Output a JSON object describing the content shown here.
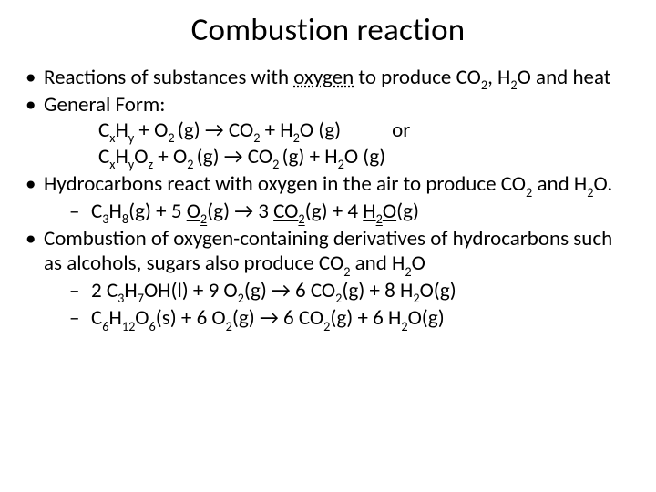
{
  "colors": {
    "text": "#000000",
    "background": "#ffffff"
  },
  "typography": {
    "title_fontsize": 35,
    "body_fontsize": 23,
    "font_family": "Calibri"
  },
  "title": "Combustion reaction",
  "bullets": {
    "b1_pre": "Reactions of substances with ",
    "b1_oxygen": "oxygen",
    "b1_mid": " to produce CO",
    "b1_co2_sub": "2",
    "b1_comma": ", H",
    "b1_h2o_sub": "2",
    "b1_tail": "O and heat",
    "b2": "General Form:",
    "gf1_c": "C",
    "gf1_x": "x",
    "gf1_h": "H",
    "gf1_y": "y",
    "gf1_p1": "  + O",
    "gf1_o2": "2 ",
    "gf1_g1": "(g)   → CO",
    "gf1_co2": "2",
    "gf1_p2": " + H",
    "gf1_h2o": "2",
    "gf1_tail": "O (g)",
    "gf1_or": "or",
    "gf2_c": "C",
    "gf2_x": "x",
    "gf2_h": "H",
    "gf2_y": "y",
    "gf2_o": "O",
    "gf2_z": "z",
    "gf2_p1": "  + O",
    "gf2_o2": "2 ",
    "gf2_g1": "(g)   → CO",
    "gf2_co2": "2 ",
    "gf2_g2": "(g) + H",
    "gf2_h2o": "2",
    "gf2_tail": "O (g)",
    "b3_pre": "Hydrocarbons react with oxygen in the air to produce CO",
    "b3_co2": "2",
    "b3_mid": " and H",
    "b3_h2o": "2",
    "b3_tail": "O.",
    "eq1_pre": "C",
    "eq1_3": "3",
    "eq1_h": "H",
    "eq1_8": "8",
    "eq1_g1": "(g)  + 5 ",
    "eq1_ou": "O",
    "eq1_o2": "2",
    "eq1_g2": "(g) → 3 ",
    "eq1_cou": "CO",
    "eq1_co2": "2",
    "eq1_g3": "(g)  + 4 ",
    "eq1_hu": "H",
    "eq1_h2": "2",
    "eq1_ouu": "O",
    "eq1_tail": "(g)",
    "b4_pre": "Combustion of oxygen-containing derivatives of hydrocarbons such as alcohols, sugars also produce CO",
    "b4_co2": "2",
    "b4_mid": " and H",
    "b4_h2o": "2",
    "b4_tail": "O",
    "eq2_pre": " 2 C",
    "eq2_3": "3",
    "eq2_h": "H",
    "eq2_7": "7",
    "eq2_oh": "OH(l) + 9 O",
    "eq2_o2": "2",
    "eq2_g1": "(g)   → 6 CO",
    "eq2_co2": "2",
    "eq2_g2": "(g) + 8 H",
    "eq2_h2o": "2",
    "eq2_tail": "O(g)",
    "eq3_c": "C",
    "eq3_6a": "6",
    "eq3_h": "H",
    "eq3_12": "12",
    "eq3_o": "O",
    "eq3_6b": "6",
    "eq3_s": "(s) + 6 O",
    "eq3_o2": "2",
    "eq3_g1": "(g) → 6 CO",
    "eq3_co2": "2",
    "eq3_g2": "(g) + 6 H",
    "eq3_h2o": "2",
    "eq3_tail": "O(g)"
  }
}
